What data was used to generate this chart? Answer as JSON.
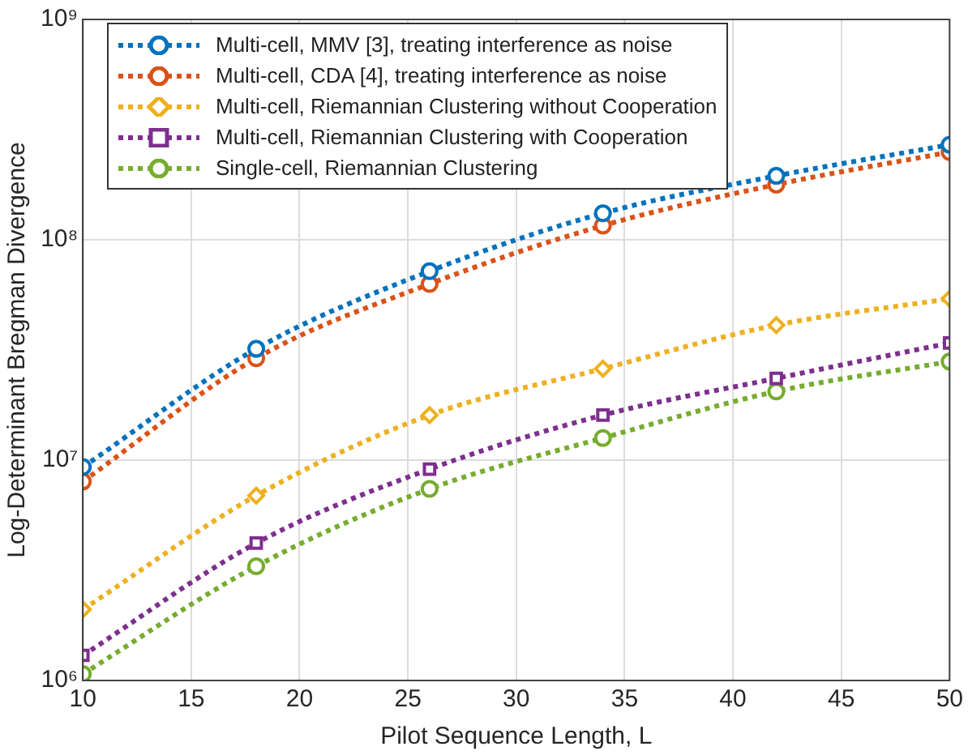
{
  "chart_data": {
    "type": "line",
    "xlabel": "Pilot Sequence Length, L",
    "ylabel": "Log-Determinant Bregman Divergence",
    "x": [
      10,
      18,
      26,
      34,
      42,
      50
    ],
    "series": [
      {
        "name": "Multi-cell, MMV [3], treating interference as noise",
        "color": "#0072bd",
        "marker": "circle",
        "values": [
          9300000,
          32000000,
          72000000,
          132000000,
          195000000,
          270000000
        ]
      },
      {
        "name": "Multi-cell, CDA [4], treating interference as noise",
        "color": "#d95319",
        "marker": "circle",
        "values": [
          8000000,
          29000000,
          63000000,
          116000000,
          178000000,
          250000000
        ]
      },
      {
        "name": "Multi-cell, Riemannian Clustering without Cooperation",
        "color": "#edb120",
        "marker": "diamond",
        "values": [
          2100000,
          6900000,
          16000000,
          26000000,
          41000000,
          54000000
        ]
      },
      {
        "name": "Multi-cell, Riemannian Clustering with Cooperation",
        "color": "#7e2f8e",
        "marker": "square",
        "values": [
          1300000,
          4200000,
          9100000,
          16000000,
          23500000,
          34000000
        ]
      },
      {
        "name": "Single-cell, Riemannian Clustering",
        "color": "#77ac30",
        "marker": "circle",
        "values": [
          1070000,
          3300000,
          7400000,
          12600000,
          20500000,
          28000000
        ]
      }
    ],
    "log": "y",
    "line_style": "dotted",
    "grid": true,
    "legend": "top left",
    "xlim": [
      10,
      50
    ],
    "xticks": [
      10,
      15,
      20,
      25,
      30,
      35,
      40,
      45,
      50
    ],
    "ylim": [
      1000000,
      1000000000
    ],
    "yticks": [
      {
        "value": 1000000,
        "label": "10⁶"
      },
      {
        "value": 10000000,
        "label": "10⁷"
      },
      {
        "value": 100000000,
        "label": "10⁸"
      },
      {
        "value": 1000000000,
        "label": "10⁹"
      }
    ]
  }
}
